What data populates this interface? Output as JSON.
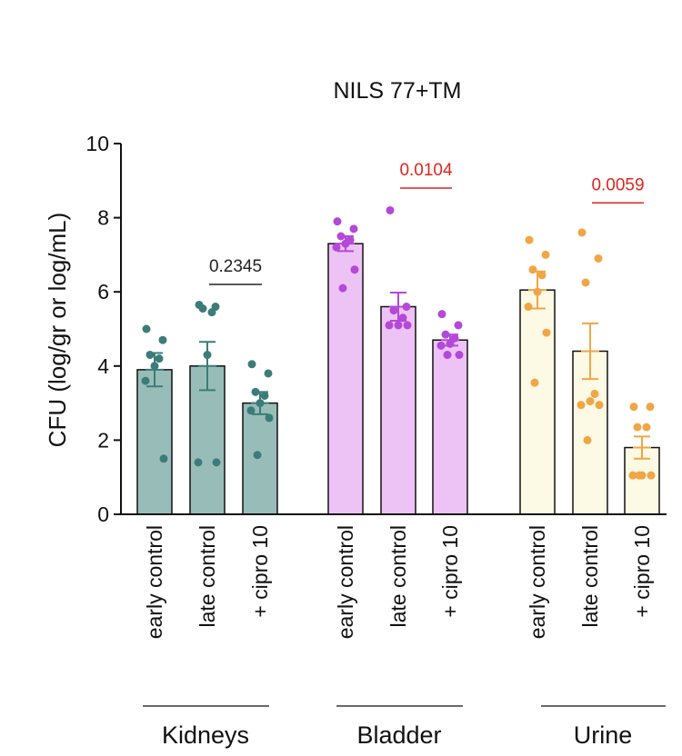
{
  "chart_data": {
    "type": "bar",
    "title": "NILS 77+TM",
    "ylabel": "CFU (log/gr or log/mL)",
    "xlabel": "",
    "ylim": [
      0,
      10
    ],
    "yticks": [
      "0",
      "2",
      "4",
      "6",
      "8",
      "10"
    ],
    "groups": [
      {
        "name": "Kidneys",
        "fill": "#98BDB9",
        "stroke": "#3C7C78",
        "categories": [
          "early control",
          "late control",
          "+ cipro 10"
        ],
        "means": [
          3.9,
          4.0,
          3.0
        ],
        "errors": [
          0.45,
          0.65,
          0.3
        ],
        "points": [
          [
            5.0,
            4.7,
            4.3,
            4.2,
            4.0,
            3.6,
            1.5
          ],
          [
            5.65,
            5.6,
            5.55,
            5.45,
            4.3,
            1.4,
            1.4
          ],
          [
            4.05,
            3.8,
            3.3,
            3.2,
            3.0,
            2.8,
            2.6,
            1.6
          ]
        ],
        "comparison": {
          "label": "0.2345",
          "between": [
            1,
            2
          ],
          "y": 6.2,
          "color": "#222222"
        }
      },
      {
        "name": "Bladder",
        "fill": "#EDC3F6",
        "stroke": "#B448D8",
        "categories": [
          "early control",
          "late control",
          "+ cipro 10"
        ],
        "means": [
          7.3,
          5.6,
          4.7
        ],
        "errors": [
          0.2,
          0.38,
          0.15
        ],
        "points": [
          [
            7.9,
            7.7,
            7.5,
            7.4,
            7.3,
            7.2,
            6.6,
            6.1
          ],
          [
            8.2,
            5.6,
            5.5,
            5.3,
            5.1,
            5.1,
            5.1
          ],
          [
            5.4,
            5.1,
            4.85,
            4.75,
            4.6,
            4.55,
            4.3,
            4.3
          ]
        ],
        "comparison": {
          "label": "0.0104",
          "between": [
            1,
            2
          ],
          "y": 8.8,
          "color": "#E0241E"
        }
      },
      {
        "name": "Urine",
        "fill": "#FCF9E4",
        "stroke": "#F0A645",
        "categories": [
          "early control",
          "late control",
          "+ cipro 10"
        ],
        "means": [
          6.05,
          4.4,
          1.8
        ],
        "errors": [
          0.5,
          0.75,
          0.3
        ],
        "points": [
          [
            7.4,
            7.0,
            6.6,
            6.45,
            6.0,
            5.6,
            4.9,
            3.55
          ],
          [
            7.6,
            6.9,
            6.25,
            3.25,
            3.05,
            2.95,
            2.95,
            2.0
          ],
          [
            2.9,
            2.9,
            2.35,
            2.35,
            1.05,
            1.05,
            1.05,
            1.05
          ]
        ],
        "comparison": {
          "label": "0.0059",
          "between": [
            1,
            2
          ],
          "y": 8.4,
          "color": "#E0241E"
        }
      }
    ]
  }
}
